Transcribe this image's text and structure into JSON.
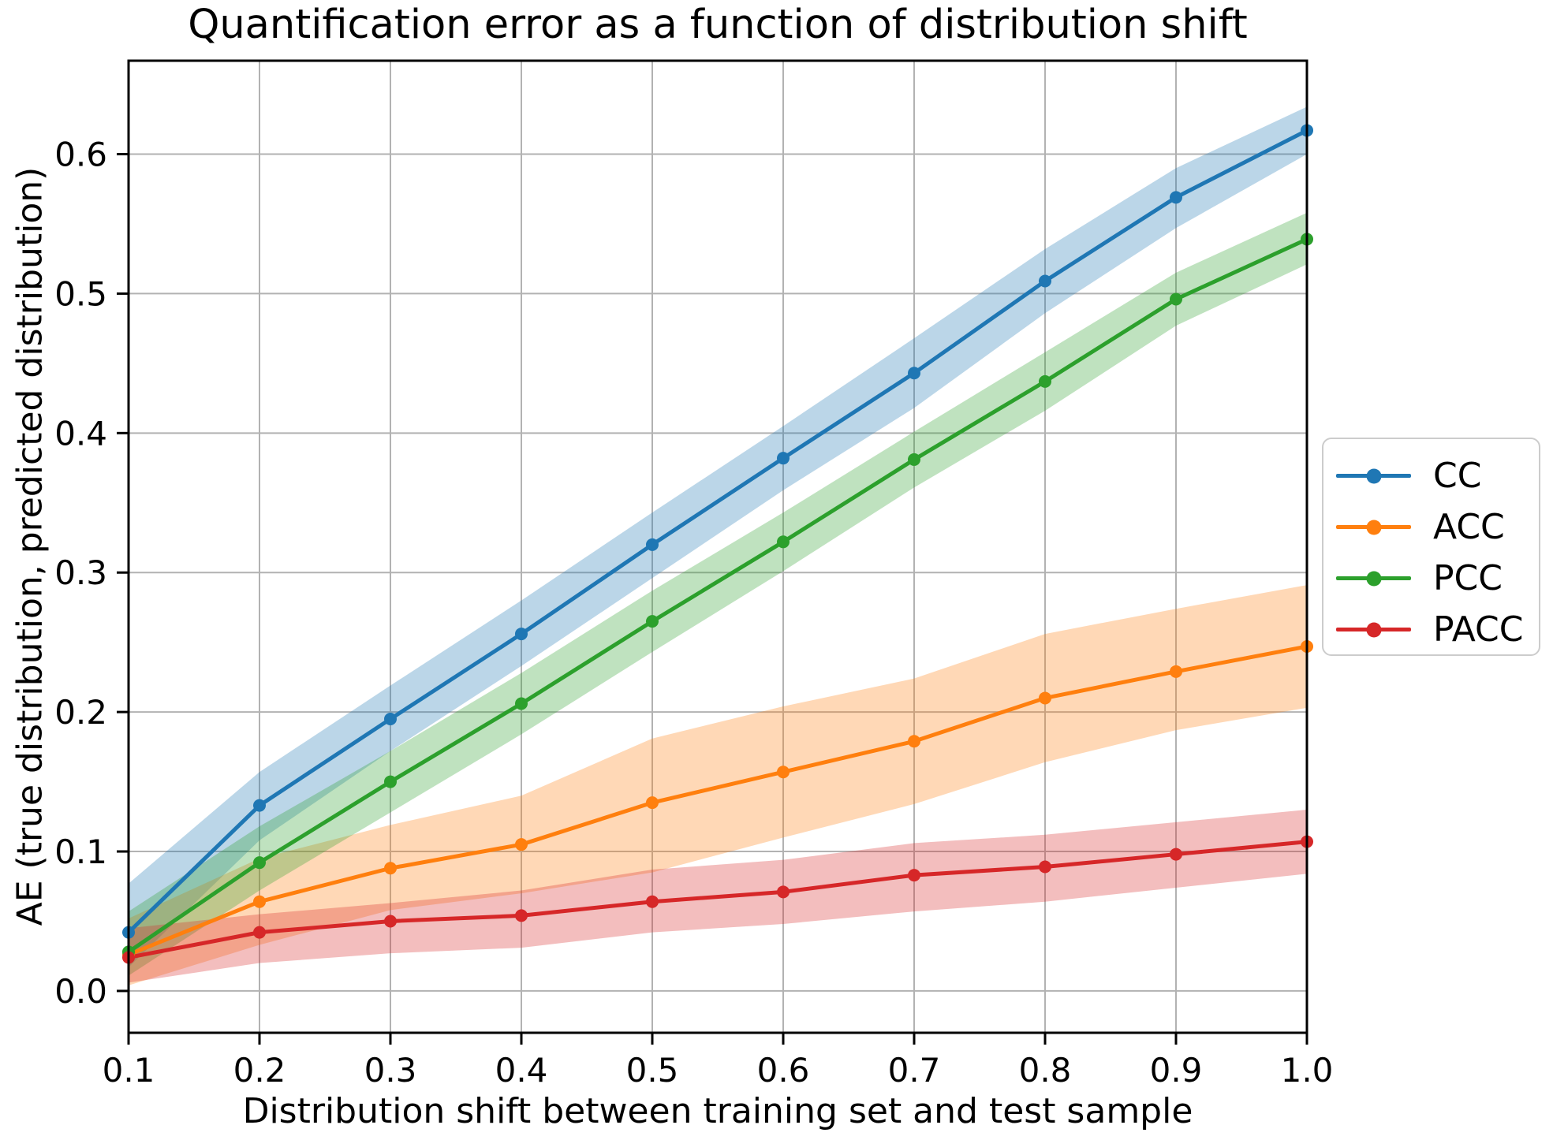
{
  "figure": {
    "title": "Quantification error as a function of distribution shift"
  },
  "axes": {
    "xlabel": "Distribution shift between training set and test sample",
    "ylabel": "AE (true distribution, predicted distribution)",
    "xlim": [
      0.1,
      1.0
    ],
    "ylim": [
      -0.03,
      0.667
    ],
    "xtick_labels": [
      "0.1",
      "0.2",
      "0.3",
      "0.4",
      "0.5",
      "0.6",
      "0.7",
      "0.8",
      "0.9",
      "1.0"
    ],
    "ytick_labels": [
      "0.0",
      "0.1",
      "0.2",
      "0.3",
      "0.4",
      "0.5",
      "0.6"
    ],
    "grid": true,
    "grid_color": "#b2b2b2",
    "spine_color": "#000000",
    "legend_position": "center right outside"
  },
  "chart_data": {
    "type": "line",
    "title": "Quantification error as a function of distribution shift",
    "xlabel": "Distribution shift between training set and test sample",
    "ylabel": "AE (true distribution, predicted distribution)",
    "x": [
      0.1,
      0.2,
      0.3,
      0.4,
      0.5,
      0.6,
      0.7,
      0.8,
      0.9,
      1.0
    ],
    "xlim": [
      0.1,
      1.0
    ],
    "ylim": [
      -0.03,
      0.667
    ],
    "grid": true,
    "legend_entries": [
      "CC",
      "ACC",
      "PCC",
      "PACC"
    ],
    "series": [
      {
        "name": "CC",
        "color": "#1f77b4",
        "values": [
          0.042,
          0.133,
          0.195,
          0.256,
          0.32,
          0.382,
          0.443,
          0.509,
          0.569,
          0.617
        ],
        "band_lower": [
          0.017,
          0.108,
          0.172,
          0.233,
          0.296,
          0.359,
          0.418,
          0.486,
          0.547,
          0.6
        ],
        "band_upper": [
          0.077,
          0.157,
          0.219,
          0.28,
          0.343,
          0.405,
          0.468,
          0.532,
          0.59,
          0.634
        ]
      },
      {
        "name": "ACC",
        "color": "#ff7f0e",
        "values": [
          0.026,
          0.064,
          0.088,
          0.105,
          0.135,
          0.157,
          0.179,
          0.21,
          0.229,
          0.247
        ],
        "band_lower": [
          0.004,
          0.033,
          0.058,
          0.07,
          0.085,
          0.11,
          0.134,
          0.164,
          0.187,
          0.203
        ],
        "band_upper": [
          0.052,
          0.095,
          0.119,
          0.14,
          0.181,
          0.204,
          0.224,
          0.256,
          0.274,
          0.291
        ]
      },
      {
        "name": "PCC",
        "color": "#2ca02c",
        "values": [
          0.028,
          0.092,
          0.15,
          0.206,
          0.265,
          0.322,
          0.381,
          0.437,
          0.496,
          0.539
        ],
        "band_lower": [
          0.011,
          0.072,
          0.128,
          0.184,
          0.243,
          0.301,
          0.361,
          0.416,
          0.477,
          0.521
        ],
        "band_upper": [
          0.057,
          0.118,
          0.172,
          0.228,
          0.287,
          0.343,
          0.401,
          0.458,
          0.515,
          0.558
        ]
      },
      {
        "name": "PACC",
        "color": "#d62728",
        "values": [
          0.024,
          0.042,
          0.05,
          0.054,
          0.064,
          0.071,
          0.083,
          0.089,
          0.098,
          0.107
        ],
        "band_lower": [
          0.006,
          0.02,
          0.027,
          0.031,
          0.042,
          0.048,
          0.057,
          0.064,
          0.074,
          0.084
        ],
        "band_upper": [
          0.045,
          0.055,
          0.063,
          0.072,
          0.087,
          0.094,
          0.106,
          0.112,
          0.121,
          0.13
        ]
      }
    ],
    "band_opacity": "0.3"
  }
}
